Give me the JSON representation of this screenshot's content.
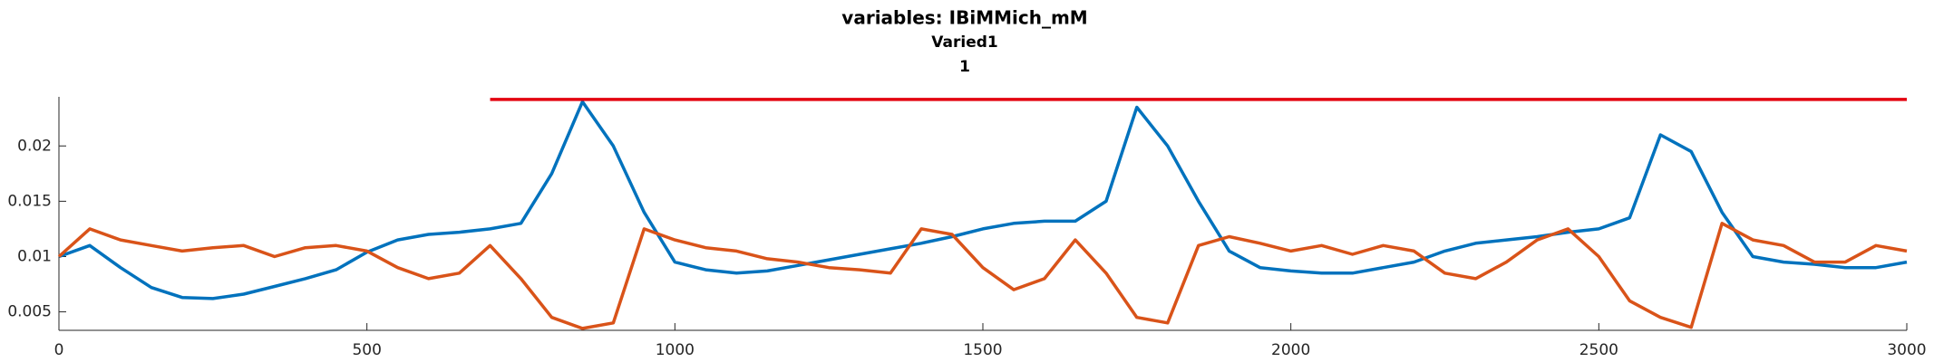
{
  "chart_data": {
    "type": "line",
    "title": "variables: IBiMMich_mM",
    "subtitle": "Varied1",
    "subtitle2": "1",
    "x": [
      0,
      50,
      100,
      150,
      200,
      250,
      300,
      350,
      400,
      450,
      500,
      550,
      600,
      650,
      700,
      750,
      800,
      850,
      900,
      950,
      1000,
      1050,
      1100,
      1150,
      1200,
      1250,
      1300,
      1350,
      1400,
      1450,
      1500,
      1550,
      1600,
      1650,
      1700,
      1750,
      1800,
      1850,
      1900,
      1950,
      2000,
      2050,
      2100,
      2150,
      2200,
      2250,
      2300,
      2350,
      2400,
      2450,
      2500,
      2550,
      2600,
      2650,
      2700,
      2750,
      2800,
      2850,
      2900,
      2950,
      3000
    ],
    "series": [
      {
        "color": "#0072bd",
        "values": [
          0.01,
          0.011,
          0.009,
          0.0072,
          0.0063,
          0.0062,
          0.0066,
          0.0073,
          0.008,
          0.0088,
          0.0104,
          0.0115,
          0.012,
          0.0122,
          0.0125,
          0.013,
          0.0175,
          0.024,
          0.02,
          0.014,
          0.0095,
          0.0088,
          0.0085,
          0.0087,
          0.0092,
          0.0097,
          0.0102,
          0.0107,
          0.0112,
          0.0118,
          0.0125,
          0.013,
          0.0132,
          0.0132,
          0.015,
          0.0235,
          0.02,
          0.015,
          0.0105,
          0.009,
          0.0087,
          0.0085,
          0.0085,
          0.009,
          0.0095,
          0.0105,
          0.0112,
          0.0115,
          0.0118,
          0.0122,
          0.0125,
          0.0135,
          0.021,
          0.0195,
          0.014,
          0.01,
          0.0095,
          0.0093,
          0.009,
          0.009,
          0.0095
        ]
      },
      {
        "color": "#d95319",
        "values": [
          0.01,
          0.0125,
          0.0115,
          0.011,
          0.0105,
          0.0108,
          0.011,
          0.01,
          0.0108,
          0.011,
          0.0105,
          0.009,
          0.008,
          0.0085,
          0.011,
          0.008,
          0.0045,
          0.0035,
          0.004,
          0.0125,
          0.0115,
          0.0108,
          0.0105,
          0.0098,
          0.0095,
          0.009,
          0.0088,
          0.0085,
          0.0125,
          0.012,
          0.009,
          0.007,
          0.008,
          0.0115,
          0.0085,
          0.0045,
          0.004,
          0.011,
          0.0118,
          0.0112,
          0.0105,
          0.011,
          0.0102,
          0.011,
          0.0105,
          0.0085,
          0.008,
          0.0095,
          0.0115,
          0.0125,
          0.01,
          0.006,
          0.0045,
          0.0036,
          0.013,
          0.0115,
          0.011,
          0.0095,
          0.0095,
          0.011,
          0.0105
        ]
      }
    ],
    "reference_line": {
      "color": "#e3000f",
      "x": [
        700,
        3000
      ],
      "value": 0.0242
    },
    "xlim": [
      0,
      3000
    ],
    "xticks": [
      0,
      500,
      1000,
      1500,
      2000,
      2500,
      3000
    ],
    "ylim": [
      0.00333,
      0.02444
    ],
    "yticks": [
      0.005,
      0.01,
      0.015,
      0.02
    ]
  }
}
